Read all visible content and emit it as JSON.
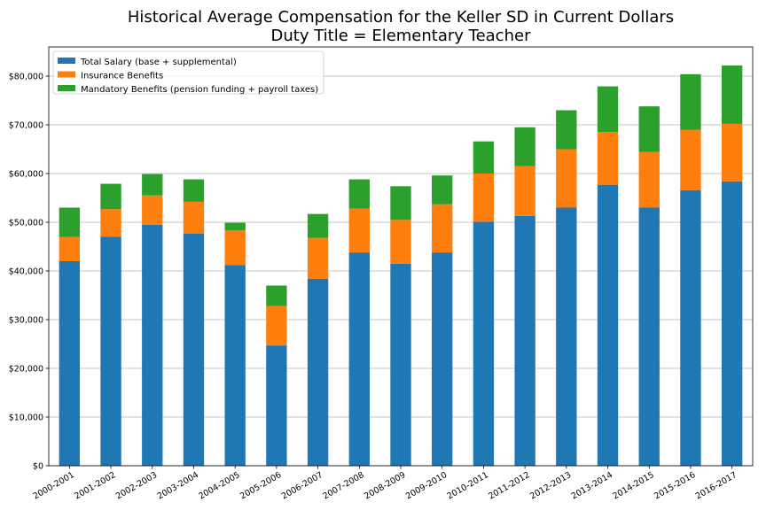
{
  "chart_data": {
    "type": "bar",
    "stacked": true,
    "title": "Historical Average Compensation for the Keller SD in Current Dollars",
    "subtitle": "Duty Title = Elementary Teacher",
    "xlabel": "",
    "ylabel": "",
    "ylim": [
      0,
      86000
    ],
    "yticks": [
      0,
      10000,
      20000,
      30000,
      40000,
      50000,
      60000,
      70000,
      80000
    ],
    "ytick_labels": [
      "$0",
      "$10,000",
      "$20,000",
      "$30,000",
      "$40,000",
      "$50,000",
      "$60,000",
      "$70,000",
      "$80,000"
    ],
    "grid": "horizontal",
    "legend_position": "top-left",
    "categories": [
      "2000-2001",
      "2001-2002",
      "2002-2003",
      "2003-2004",
      "2004-2005",
      "2005-2006",
      "2006-2007",
      "2007-2008",
      "2008-2009",
      "2009-2010",
      "2010-2011",
      "2011-2012",
      "2012-2013",
      "2013-2014",
      "2014-2015",
      "2015-2016",
      "2016-2017"
    ],
    "series": [
      {
        "name": "Total Salary (base + supplemental)",
        "color": "#1f77b4",
        "values": [
          42000,
          47000,
          49500,
          47700,
          41200,
          24700,
          38400,
          43800,
          41500,
          43800,
          50100,
          51300,
          53000,
          57700,
          53000,
          56600,
          58400
        ]
      },
      {
        "name": "Insurance Benefits",
        "color": "#ff7f0e",
        "values": [
          5000,
          5700,
          6000,
          6500,
          7100,
          8100,
          8400,
          9000,
          9000,
          9900,
          9900,
          10200,
          12000,
          10800,
          11400,
          12400,
          11800
        ]
      },
      {
        "name": "Mandatory Benefits (pension funding + payroll taxes)",
        "color": "#2ca02c",
        "values": [
          6000,
          5200,
          4400,
          4600,
          1600,
          4200,
          4900,
          6000,
          6900,
          5900,
          6600,
          8000,
          8000,
          9400,
          9400,
          11400,
          12000
        ]
      }
    ]
  }
}
